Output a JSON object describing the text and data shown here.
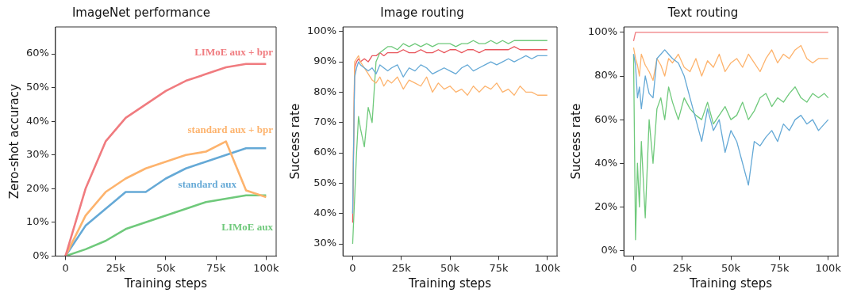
{
  "chart_data": [
    {
      "type": "line",
      "title": "ImageNet performance",
      "xlabel": "Training steps",
      "ylabel": "Zero-shot accuracy",
      "x": [
        0,
        10000,
        20000,
        30000,
        40000,
        50000,
        60000,
        70000,
        80000,
        90000,
        100000
      ],
      "xlim": [
        -5000,
        105000
      ],
      "ylim": [
        0,
        68
      ],
      "xticks": [
        {
          "value": 0,
          "label": "0"
        },
        {
          "value": 25000,
          "label": "25k"
        },
        {
          "value": 50000,
          "label": "50k"
        },
        {
          "value": 75000,
          "label": "75k"
        },
        {
          "value": 100000,
          "label": "100k"
        }
      ],
      "yticks": [
        {
          "value": 0,
          "label": "0%"
        },
        {
          "value": 10,
          "label": "10%"
        },
        {
          "value": 20,
          "label": "20%"
        },
        {
          "value": 30,
          "label": "30%"
        },
        {
          "value": 40,
          "label": "40%"
        },
        {
          "value": 50,
          "label": "50%"
        },
        {
          "value": 60,
          "label": "60%"
        }
      ],
      "grid": false,
      "legend": false,
      "marker": "none",
      "line_style": "solid",
      "series": [
        {
          "name": "LIMoE aux + bpr",
          "color": "#f07b7f",
          "values": [
            0,
            20,
            34,
            41,
            45,
            49,
            52,
            54,
            56,
            57,
            57
          ]
        },
        {
          "name": "standard aux + bpr",
          "color": "#fdb36d",
          "values": [
            0,
            12,
            19,
            23,
            26,
            28,
            30,
            31,
            34,
            19.5,
            17.5
          ]
        },
        {
          "name": "standard aux",
          "color": "#65a9d6",
          "values": [
            0,
            9,
            14,
            19,
            19,
            23,
            26,
            28,
            30,
            32,
            32
          ]
        },
        {
          "name": "LIMoE aux",
          "color": "#6fc97b",
          "values": [
            0,
            2,
            4.5,
            8,
            10,
            12,
            14,
            16,
            17,
            18,
            18
          ]
        }
      ]
    },
    {
      "type": "line",
      "title": "Image routing",
      "xlabel": "Training steps",
      "ylabel": "Success rate",
      "x": [
        0,
        1000,
        2000,
        3000,
        4000,
        6000,
        8000,
        10000,
        12000,
        14000,
        16000,
        18000,
        20000,
        23000,
        26000,
        29000,
        32000,
        35000,
        38000,
        41000,
        44000,
        47000,
        50000,
        53000,
        56000,
        59000,
        62000,
        65000,
        68000,
        71000,
        74000,
        77000,
        80000,
        83000,
        86000,
        89000,
        92000,
        95000,
        98000,
        100000
      ],
      "xlim": [
        -5000,
        105000
      ],
      "ylim": [
        26,
        101.5
      ],
      "xticks": [
        {
          "value": 0,
          "label": "0"
        },
        {
          "value": 25000,
          "label": "25k"
        },
        {
          "value": 50000,
          "label": "50k"
        },
        {
          "value": 75000,
          "label": "75k"
        },
        {
          "value": 100000,
          "label": "100k"
        }
      ],
      "yticks": [
        {
          "value": 30,
          "label": "30%"
        },
        {
          "value": 40,
          "label": "40%"
        },
        {
          "value": 50,
          "label": "50%"
        },
        {
          "value": 60,
          "label": "60%"
        },
        {
          "value": 70,
          "label": "70%"
        },
        {
          "value": 80,
          "label": "80%"
        },
        {
          "value": 90,
          "label": "90%"
        },
        {
          "value": 100,
          "label": "100%"
        }
      ],
      "grid": false,
      "legend": false,
      "marker": "none",
      "line_style": "solid",
      "series": [
        {
          "color": "#65a9d6",
          "values": [
            40,
            85,
            88,
            90,
            89,
            88,
            87,
            88,
            86,
            89,
            88,
            87,
            88,
            89,
            85,
            88,
            87,
            89,
            88,
            86,
            87,
            88,
            87,
            86,
            88,
            89,
            87,
            88,
            89,
            90,
            89,
            90,
            91,
            90,
            91,
            92,
            91,
            92,
            92,
            92
          ]
        },
        {
          "color": "#fdb36d",
          "values": [
            40,
            90,
            91,
            92,
            90,
            88,
            86,
            84,
            83,
            85,
            82,
            84,
            83,
            85,
            81,
            84,
            83,
            82,
            85,
            80,
            83,
            81,
            82,
            80,
            81,
            79,
            82,
            80,
            82,
            81,
            83,
            80,
            81,
            79,
            82,
            80,
            80,
            79,
            79,
            79
          ]
        },
        {
          "color": "#6fc97b",
          "values": [
            30,
            45,
            60,
            72,
            68,
            62,
            75,
            70,
            90,
            93,
            94,
            95,
            95,
            94,
            96,
            95,
            96,
            95,
            96,
            95,
            96,
            96,
            96,
            95,
            96,
            96,
            97,
            96,
            96,
            97,
            96,
            97,
            96,
            97,
            97,
            97,
            97,
            97,
            97,
            97
          ]
        },
        {
          "color": "#e8545a",
          "values": [
            37,
            88,
            90,
            91,
            90,
            91,
            90,
            92,
            92,
            93,
            92,
            93,
            93,
            93,
            94,
            93,
            93,
            94,
            93,
            93,
            94,
            93,
            94,
            94,
            93,
            94,
            94,
            93,
            94,
            94,
            94,
            94,
            94,
            95,
            94,
            94,
            94,
            94,
            94,
            94
          ]
        }
      ]
    },
    {
      "type": "line",
      "title": "Text routing",
      "xlabel": "Training steps",
      "ylabel": "Success rate",
      "x": [
        0,
        1000,
        2000,
        3000,
        4000,
        6000,
        8000,
        10000,
        12000,
        14000,
        16000,
        18000,
        20000,
        23000,
        26000,
        29000,
        32000,
        35000,
        38000,
        41000,
        44000,
        47000,
        50000,
        53000,
        56000,
        59000,
        62000,
        65000,
        68000,
        71000,
        74000,
        77000,
        80000,
        83000,
        86000,
        89000,
        92000,
        95000,
        98000,
        100000
      ],
      "xlim": [
        -5000,
        105000
      ],
      "ylim": [
        -2.5,
        102.5
      ],
      "xticks": [
        {
          "value": 0,
          "label": "0"
        },
        {
          "value": 25000,
          "label": "25k"
        },
        {
          "value": 50000,
          "label": "50k"
        },
        {
          "value": 75000,
          "label": "75k"
        },
        {
          "value": 100000,
          "label": "100k"
        }
      ],
      "yticks": [
        {
          "value": 0,
          "label": "0%"
        },
        {
          "value": 20,
          "label": "20%"
        },
        {
          "value": 40,
          "label": "40%"
        },
        {
          "value": 60,
          "label": "60%"
        },
        {
          "value": 80,
          "label": "80%"
        },
        {
          "value": 100,
          "label": "100%"
        }
      ],
      "grid": false,
      "legend": false,
      "marker": "none",
      "line_style": "solid",
      "series": [
        {
          "color": "#65a9d6",
          "values": [
            90,
            85,
            70,
            75,
            65,
            80,
            72,
            70,
            88,
            90,
            92,
            90,
            88,
            86,
            80,
            70,
            60,
            50,
            65,
            55,
            60,
            45,
            55,
            50,
            40,
            30,
            50,
            48,
            52,
            55,
            50,
            58,
            55,
            60,
            62,
            58,
            60,
            55,
            58,
            60
          ]
        },
        {
          "color": "#fdb36d",
          "values": [
            93,
            88,
            85,
            80,
            90,
            85,
            82,
            78,
            88,
            85,
            80,
            88,
            86,
            90,
            84,
            82,
            88,
            80,
            87,
            84,
            90,
            82,
            86,
            88,
            84,
            90,
            86,
            82,
            88,
            92,
            86,
            90,
            88,
            92,
            94,
            88,
            86,
            88,
            88,
            88
          ]
        },
        {
          "color": "#6fc97b",
          "values": [
            90,
            5,
            40,
            20,
            50,
            15,
            60,
            40,
            65,
            70,
            60,
            75,
            68,
            60,
            70,
            65,
            62,
            60,
            68,
            58,
            62,
            66,
            60,
            62,
            68,
            60,
            64,
            70,
            72,
            66,
            70,
            68,
            72,
            75,
            70,
            68,
            72,
            70,
            72,
            70
          ]
        },
        {
          "color": "#f07b7f",
          "values": [
            96,
            100,
            100,
            100,
            100,
            100,
            100,
            100,
            100,
            100,
            100,
            100,
            100,
            100,
            100,
            100,
            100,
            100,
            100,
            100,
            100,
            100,
            100,
            100,
            100,
            100,
            100,
            100,
            100,
            100,
            100,
            100,
            100,
            100,
            100,
            100,
            100,
            100,
            100,
            100
          ]
        }
      ]
    }
  ]
}
